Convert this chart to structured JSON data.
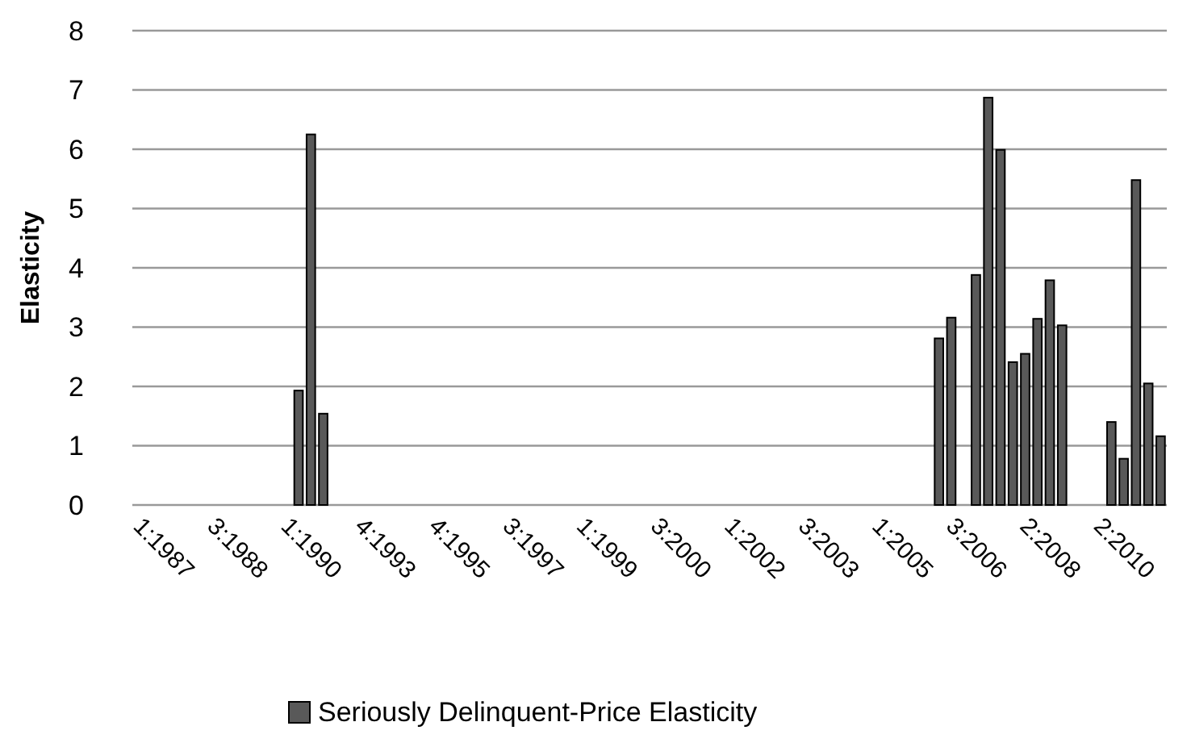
{
  "chart_data": {
    "type": "bar",
    "ylabel": "Elasticity",
    "categories": [
      "1:1987",
      null,
      null,
      null,
      null,
      null,
      "3:1988",
      null,
      null,
      null,
      null,
      null,
      "1:1990",
      null,
      null,
      null,
      null,
      null,
      "4:1993",
      null,
      null,
      null,
      null,
      null,
      "4:1995",
      null,
      null,
      null,
      null,
      null,
      "3:1997",
      null,
      null,
      null,
      null,
      null,
      "1:1999",
      null,
      null,
      null,
      null,
      null,
      "3:2000",
      null,
      null,
      null,
      null,
      null,
      "1:2002",
      null,
      null,
      null,
      null,
      null,
      "3:2003",
      null,
      null,
      null,
      null,
      null,
      "1:2005",
      null,
      null,
      null,
      null,
      null,
      "3:2006",
      null,
      null,
      null,
      null,
      null,
      "2:2008",
      null,
      null,
      null,
      null,
      null,
      "2:2010",
      null,
      null,
      null,
      null,
      null
    ],
    "series": [
      {
        "name": "Seriously Delinquent-Price Elasticity",
        "color": "#595959",
        "values": [
          null,
          null,
          null,
          null,
          null,
          null,
          null,
          null,
          null,
          null,
          null,
          null,
          null,
          1.93,
          6.25,
          1.54,
          null,
          null,
          null,
          null,
          null,
          null,
          null,
          null,
          null,
          null,
          null,
          null,
          null,
          null,
          null,
          null,
          null,
          null,
          null,
          null,
          null,
          null,
          null,
          null,
          null,
          null,
          null,
          null,
          null,
          null,
          null,
          null,
          null,
          null,
          null,
          null,
          null,
          null,
          null,
          null,
          null,
          null,
          null,
          null,
          null,
          null,
          null,
          null,
          null,
          2.81,
          3.16,
          null,
          3.88,
          6.87,
          5.99,
          2.41,
          2.55,
          3.14,
          3.79,
          3.03,
          null,
          null,
          null,
          1.4,
          0.78,
          5.48,
          2.05,
          1.16
        ]
      }
    ],
    "ylim": [
      0,
      8
    ],
    "yticks": [
      0,
      1,
      2,
      3,
      4,
      5,
      6,
      7,
      8
    ],
    "grid": "y",
    "legend": "bottom"
  }
}
